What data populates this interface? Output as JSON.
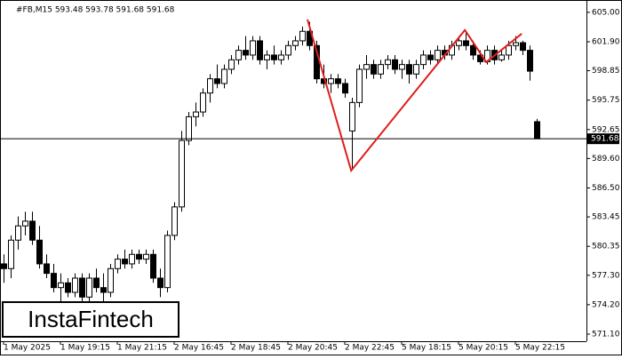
{
  "chart_data": {
    "type": "candlestick",
    "title": "#FB,M15  593.48 593.78 591.68 591.68",
    "open": [
      578.5,
      578.0,
      581.0,
      582.5,
      583.0,
      581.0,
      578.5,
      577.5,
      576.0,
      576.5,
      575.5,
      577.0,
      575.0,
      577.0,
      576.0,
      575.5,
      578.0,
      579.0,
      578.5,
      579.5,
      579.0,
      579.5,
      577.0,
      576.0,
      581.5,
      584.5,
      591.5,
      594.0,
      594.5,
      596.5,
      598.0,
      597.5,
      599.0,
      600.0,
      601.0,
      600.5,
      602.0,
      600.0,
      600.5,
      600.0,
      600.5,
      601.5,
      602.0,
      603.0,
      601.5,
      598.0,
      597.5,
      598.0,
      597.5,
      592.5,
      595.5,
      599.0,
      599.5,
      598.5,
      599.5,
      600.0,
      599.0,
      599.5,
      598.5,
      599.5,
      600.5,
      600.0,
      601.0,
      600.5,
      601.5,
      602.0,
      601.5,
      600.5,
      599.8,
      601.0,
      600.0,
      600.5,
      601.5,
      601.8,
      601.0,
      593.48
    ],
    "high": [
      579.5,
      581.5,
      583.5,
      584.0,
      584.0,
      582.5,
      579.5,
      578.5,
      577.5,
      577.0,
      577.5,
      577.5,
      577.5,
      578.0,
      577.5,
      578.5,
      579.5,
      580.0,
      580.0,
      580.0,
      580.0,
      580.0,
      578.0,
      582.0,
      585.0,
      592.5,
      594.5,
      595.5,
      597.0,
      598.5,
      599.5,
      599.5,
      600.5,
      601.5,
      602.5,
      602.5,
      602.5,
      601.0,
      601.5,
      601.0,
      602.0,
      602.5,
      603.5,
      604.0,
      602.0,
      599.5,
      598.5,
      598.5,
      598.0,
      596.0,
      599.5,
      600.5,
      600.0,
      600.0,
      600.5,
      600.5,
      600.0,
      600.0,
      600.0,
      601.0,
      601.0,
      601.5,
      601.5,
      602.0,
      602.5,
      603.0,
      602.0,
      601.0,
      601.5,
      601.5,
      601.0,
      602.0,
      602.5,
      602.0,
      601.5,
      593.78
    ],
    "low": [
      576.5,
      577.0,
      580.0,
      581.5,
      580.5,
      578.0,
      577.0,
      575.5,
      574.5,
      575.0,
      575.0,
      574.5,
      574.0,
      575.5,
      574.5,
      575.0,
      577.5,
      578.0,
      578.0,
      578.5,
      578.5,
      576.5,
      575.0,
      575.5,
      581.0,
      584.0,
      591.0,
      593.0,
      594.0,
      595.5,
      597.0,
      597.0,
      598.5,
      599.5,
      600.0,
      600.0,
      599.5,
      599.0,
      599.5,
      599.5,
      600.0,
      601.0,
      601.5,
      601.0,
      597.5,
      597.0,
      596.5,
      597.0,
      596.0,
      588.4,
      595.0,
      598.0,
      598.0,
      598.0,
      599.0,
      598.5,
      598.0,
      597.5,
      598.0,
      599.0,
      599.5,
      599.5,
      600.0,
      600.0,
      601.0,
      601.0,
      600.0,
      599.5,
      599.5,
      599.5,
      599.8,
      600.0,
      601.0,
      600.5,
      597.8,
      591.68
    ],
    "close": [
      578.0,
      581.0,
      582.5,
      583.0,
      581.0,
      578.5,
      577.5,
      576.0,
      576.5,
      575.5,
      577.0,
      575.0,
      577.0,
      576.0,
      575.5,
      578.0,
      579.0,
      578.5,
      579.5,
      579.0,
      579.5,
      577.0,
      576.0,
      581.5,
      584.5,
      591.5,
      594.0,
      594.5,
      596.5,
      598.0,
      597.5,
      599.0,
      600.0,
      601.0,
      600.5,
      602.0,
      600.0,
      600.5,
      600.0,
      600.5,
      601.5,
      602.0,
      603.0,
      601.5,
      598.0,
      597.5,
      598.0,
      597.5,
      596.5,
      595.5,
      599.0,
      599.5,
      598.5,
      599.5,
      600.0,
      599.0,
      599.5,
      598.5,
      599.5,
      600.5,
      600.0,
      601.0,
      600.5,
      601.5,
      602.0,
      601.5,
      600.5,
      599.8,
      601.0,
      600.0,
      600.5,
      601.5,
      601.8,
      601.0,
      598.8,
      591.68
    ],
    "ylim": [
      570.35,
      606.3
    ],
    "yticks": [
      {
        "value": 605.0,
        "label": "605.00"
      },
      {
        "value": 601.9,
        "label": "601.90"
      },
      {
        "value": 598.85,
        "label": "598.85"
      },
      {
        "value": 595.75,
        "label": "595.75"
      },
      {
        "value": 592.65,
        "label": "592.65"
      },
      {
        "value": 589.6,
        "label": "589.60"
      },
      {
        "value": 586.5,
        "label": "586.50"
      },
      {
        "value": 583.45,
        "label": "583.45"
      },
      {
        "value": 580.35,
        "label": "580.35"
      },
      {
        "value": 577.3,
        "label": "577.30"
      },
      {
        "value": 574.2,
        "label": "574.20"
      },
      {
        "value": 571.1,
        "label": "571.10"
      }
    ],
    "xticks": [
      {
        "value": 0,
        "label": "1 May 2025"
      },
      {
        "value": 8,
        "label": "1 May 19:15"
      },
      {
        "value": 16,
        "label": "1 May 21:15"
      },
      {
        "value": 24,
        "label": "2 May 16:45"
      },
      {
        "value": 32,
        "label": "2 May 18:45"
      },
      {
        "value": 40,
        "label": "2 May 20:45"
      },
      {
        "value": 48,
        "label": "2 May 22:45"
      },
      {
        "value": 56,
        "label": "5 May 18:15"
      },
      {
        "value": 64,
        "label": "5 May 20:15"
      },
      {
        "value": 72,
        "label": "5 May 22:15"
      }
    ],
    "last_price": {
      "value": 591.68,
      "label": "591.68"
    },
    "pattern": {
      "color": "#e01e1e",
      "x": [
        42.75,
        48.9,
        64.9,
        67.9,
        72.9
      ],
      "values": [
        604.25,
        588.33,
        603.13,
        599.76,
        602.75
      ]
    },
    "logo": "InstaFintech"
  }
}
